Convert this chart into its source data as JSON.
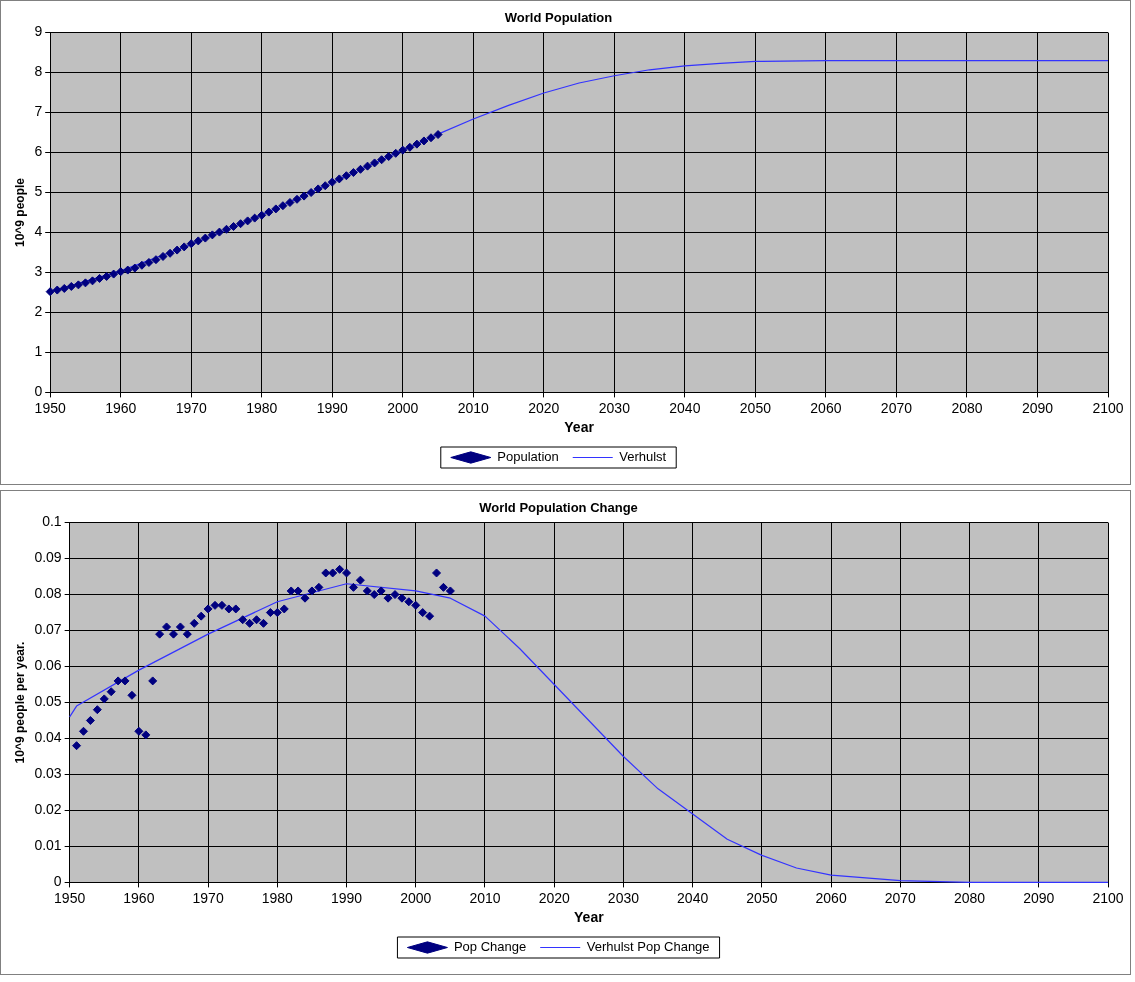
{
  "chart_data": [
    {
      "type": "scatter",
      "title": "World Population",
      "xlabel": "Year",
      "ylabel": "10^9 people",
      "xlim": [
        1950,
        2100
      ],
      "xticks": [
        1950,
        1960,
        1970,
        1980,
        1990,
        2000,
        2010,
        2020,
        2030,
        2040,
        2050,
        2060,
        2070,
        2080,
        2090,
        2100
      ],
      "ylim": [
        0,
        9
      ],
      "yticks": [
        0,
        1,
        2,
        3,
        4,
        5,
        6,
        7,
        8,
        9
      ],
      "grid": true,
      "legend": "bottom",
      "series": [
        {
          "name": "Population",
          "type": "scatter",
          "color": "#000080",
          "marker": "diamond",
          "x": [
            1950,
            1951,
            1952,
            1953,
            1954,
            1955,
            1956,
            1957,
            1958,
            1959,
            1960,
            1961,
            1962,
            1963,
            1964,
            1965,
            1966,
            1967,
            1968,
            1969,
            1970,
            1971,
            1972,
            1973,
            1974,
            1975,
            1976,
            1977,
            1978,
            1979,
            1980,
            1981,
            1982,
            1983,
            1984,
            1985,
            1986,
            1987,
            1988,
            1989,
            1990,
            1991,
            1992,
            1993,
            1994,
            1995,
            1996,
            1997,
            1998,
            1999,
            2000,
            2001,
            2002,
            2003,
            2004,
            2005
          ],
          "values": [
            2.52,
            2.56,
            2.6,
            2.65,
            2.69,
            2.74,
            2.79,
            2.85,
            2.9,
            2.96,
            3.02,
            3.06,
            3.11,
            3.18,
            3.25,
            3.32,
            3.4,
            3.48,
            3.56,
            3.64,
            3.72,
            3.79,
            3.86,
            3.94,
            4.01,
            4.08,
            4.15,
            4.22,
            4.29,
            4.36,
            4.43,
            4.51,
            4.59,
            4.67,
            4.75,
            4.83,
            4.91,
            5.0,
            5.09,
            5.17,
            5.26,
            5.34,
            5.42,
            5.5,
            5.58,
            5.66,
            5.74,
            5.82,
            5.9,
            5.98,
            6.06,
            6.13,
            6.21,
            6.29,
            6.37,
            6.45
          ]
        },
        {
          "name": "Verhulst",
          "type": "line",
          "color": "#3333ff",
          "marker": "none",
          "x": [
            1950,
            1960,
            1970,
            1980,
            1990,
            2000,
            2005,
            2010,
            2015,
            2020,
            2025,
            2030,
            2035,
            2040,
            2045,
            2050,
            2060,
            2070,
            2080,
            2100
          ],
          "values": [
            2.52,
            3.04,
            3.7,
            4.44,
            5.25,
            6.06,
            6.46,
            6.84,
            7.18,
            7.49,
            7.74,
            7.92,
            8.07,
            8.17,
            8.23,
            8.28,
            8.3,
            8.3,
            8.3,
            8.3
          ]
        }
      ]
    },
    {
      "type": "scatter",
      "title": "World Population Change",
      "xlabel": "Year",
      "ylabel": "10^9 people per year.",
      "xlim": [
        1950,
        2100
      ],
      "xticks": [
        1950,
        1960,
        1970,
        1980,
        1990,
        2000,
        2010,
        2020,
        2030,
        2040,
        2050,
        2060,
        2070,
        2080,
        2090,
        2100
      ],
      "ylim": [
        0,
        0.1
      ],
      "yticks": [
        0,
        0.01,
        0.02,
        0.03,
        0.04,
        0.05,
        0.06,
        0.07,
        0.08,
        0.09,
        0.1
      ],
      "grid": true,
      "legend": "bottom",
      "series": [
        {
          "name": "Pop Change",
          "type": "scatter",
          "color": "#000080",
          "marker": "diamond",
          "x": [
            1951,
            1952,
            1953,
            1954,
            1955,
            1956,
            1957,
            1958,
            1959,
            1960,
            1961,
            1962,
            1963,
            1964,
            1965,
            1966,
            1967,
            1968,
            1969,
            1970,
            1971,
            1972,
            1973,
            1974,
            1975,
            1976,
            1977,
            1978,
            1979,
            1980,
            1981,
            1982,
            1983,
            1984,
            1985,
            1986,
            1987,
            1988,
            1989,
            1990,
            1991,
            1992,
            1993,
            1994,
            1995,
            1996,
            1997,
            1998,
            1999,
            2000,
            2001,
            2002,
            2003,
            2004,
            2005
          ],
          "values": [
            0.038,
            0.042,
            0.045,
            0.048,
            0.051,
            0.053,
            0.056,
            0.056,
            0.052,
            0.042,
            0.041,
            0.056,
            0.069,
            0.071,
            0.069,
            0.071,
            0.069,
            0.072,
            0.074,
            0.076,
            0.077,
            0.077,
            0.076,
            0.076,
            0.073,
            0.072,
            0.073,
            0.072,
            0.075,
            0.075,
            0.076,
            0.081,
            0.081,
            0.079,
            0.081,
            0.082,
            0.086,
            0.086,
            0.087,
            0.086,
            0.082,
            0.084,
            0.081,
            0.08,
            0.081,
            0.079,
            0.08,
            0.079,
            0.078,
            0.077,
            0.075,
            0.074,
            0.086,
            0.082,
            0.081
          ]
        },
        {
          "name": "Verhulst Pop Change",
          "type": "line",
          "color": "#3333ff",
          "marker": "none",
          "x": [
            1950,
            1951,
            1960,
            1970,
            1980,
            1990,
            2000,
            2005,
            2010,
            2015,
            2020,
            2025,
            2030,
            2035,
            2040,
            2045,
            2050,
            2055,
            2060,
            2070,
            2080,
            2100
          ],
          "values": [
            0.046,
            0.049,
            0.059,
            0.069,
            0.078,
            0.083,
            0.081,
            0.079,
            0.074,
            0.065,
            0.055,
            0.045,
            0.035,
            0.026,
            0.019,
            0.012,
            0.0075,
            0.004,
            0.002,
            0.0005,
            0,
            0
          ]
        }
      ]
    }
  ]
}
